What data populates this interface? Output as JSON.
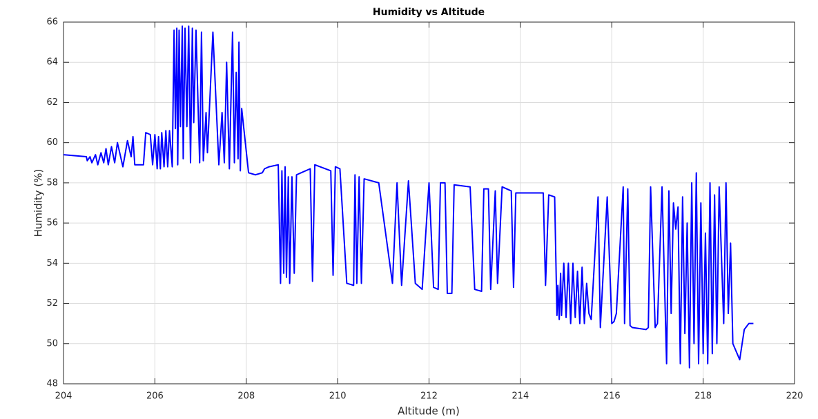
{
  "chart_data": {
    "type": "line",
    "title": "Humidity vs Altitude",
    "xlabel": "Altitude (m)",
    "ylabel": "Humidity (%)",
    "xlim": [
      204,
      220
    ],
    "xticks": [
      204,
      206,
      208,
      210,
      212,
      214,
      216,
      218,
      220
    ],
    "ylim": [
      48,
      66
    ],
    "yticks": [
      48,
      50,
      52,
      54,
      56,
      58,
      60,
      62,
      64,
      66
    ],
    "grid": true,
    "series": [
      {
        "color": "#0000ff",
        "x": [
          204,
          204.5,
          204.52,
          204.58,
          204.62,
          204.7,
          204.75,
          204.82,
          204.88,
          204.93,
          204.98,
          205.05,
          205.12,
          205.18,
          205.3,
          205.4,
          205.48,
          205.52,
          205.56,
          205.75,
          205.8,
          205.9,
          205.95,
          206.0,
          206.05,
          206.08,
          206.12,
          206.15,
          206.2,
          206.24,
          206.28,
          206.32,
          206.38,
          206.42,
          206.45,
          206.48,
          206.5,
          206.53,
          206.56,
          206.6,
          206.62,
          206.66,
          206.7,
          206.74,
          206.78,
          206.82,
          206.85,
          206.9,
          206.98,
          207.02,
          207.06,
          207.12,
          207.15,
          207.18,
          207.27,
          207.4,
          207.47,
          207.52,
          207.57,
          207.63,
          207.7,
          207.74,
          207.78,
          207.82,
          207.84,
          207.87,
          207.9,
          208.05,
          208.2,
          208.35,
          208.4,
          208.5,
          208.7,
          208.75,
          208.78,
          208.82,
          208.85,
          208.88,
          208.92,
          208.95,
          209.0,
          209.05,
          209.1,
          209.2,
          209.4,
          209.45,
          209.5,
          209.85,
          209.9,
          209.95,
          210.05,
          210.2,
          210.35,
          210.38,
          210.42,
          210.47,
          210.52,
          210.58,
          210.9,
          211.2,
          211.3,
          211.4,
          211.55,
          211.7,
          211.85,
          212.0,
          212.1,
          212.2,
          212.25,
          212.35,
          212.4,
          212.5,
          212.55,
          212.9,
          213.0,
          213.15,
          213.2,
          213.3,
          213.35,
          213.45,
          213.5,
          213.6,
          213.8,
          213.85,
          213.9,
          214.2,
          214.5,
          214.55,
          214.62,
          214.75,
          214.8,
          214.82,
          214.85,
          214.88,
          214.9,
          214.95,
          215.0,
          215.05,
          215.1,
          215.15,
          215.2,
          215.25,
          215.3,
          215.35,
          215.4,
          215.45,
          215.5,
          215.55,
          215.7,
          215.75,
          215.9,
          216.0,
          216.05,
          216.1,
          216.25,
          216.28,
          216.35,
          216.4,
          216.45,
          216.75,
          216.8,
          216.85,
          216.95,
          217.0,
          217.1,
          217.2,
          217.25,
          217.3,
          217.35,
          217.4,
          217.45,
          217.5,
          217.55,
          217.6,
          217.65,
          217.7,
          217.75,
          217.8,
          217.85,
          217.9,
          217.95,
          218.0,
          218.05,
          218.1,
          218.15,
          218.2,
          218.25,
          218.3,
          218.35,
          218.45,
          218.5,
          218.55,
          218.6,
          218.65,
          218.8,
          218.9,
          219.0,
          219.1
        ],
        "values": [
          59.4,
          59.3,
          59.1,
          59.3,
          59.0,
          59.4,
          58.9,
          59.5,
          59.0,
          59.7,
          58.9,
          59.8,
          59.0,
          60.0,
          58.8,
          60.1,
          59.3,
          60.3,
          58.9,
          58.9,
          60.5,
          60.4,
          58.9,
          60.4,
          58.7,
          60.3,
          58.7,
          60.5,
          58.8,
          60.6,
          58.8,
          60.6,
          58.8,
          65.6,
          60.7,
          65.7,
          58.9,
          65.6,
          60.8,
          65.8,
          59.2,
          65.7,
          60.8,
          65.8,
          59.0,
          65.7,
          61.0,
          65.6,
          59.0,
          65.5,
          59.1,
          61.5,
          59.5,
          61.0,
          65.5,
          58.9,
          61.5,
          59.0,
          64.0,
          58.7,
          65.5,
          59.0,
          63.5,
          59.2,
          65.0,
          58.6,
          61.7,
          58.5,
          58.4,
          58.5,
          58.7,
          58.8,
          58.9,
          53.0,
          58.6,
          53.5,
          58.8,
          53.3,
          58.3,
          53.0,
          58.3,
          53.5,
          58.4,
          58.5,
          58.7,
          53.1,
          58.9,
          58.6,
          53.4,
          58.8,
          58.7,
          53.0,
          52.9,
          58.4,
          53.0,
          58.3,
          53.0,
          58.2,
          58.0,
          53.0,
          58.0,
          52.9,
          58.1,
          53.0,
          52.7,
          58.0,
          52.8,
          52.7,
          58.0,
          58.0,
          52.5,
          52.5,
          57.9,
          57.8,
          52.7,
          52.6,
          57.7,
          57.7,
          52.7,
          57.6,
          53.0,
          57.8,
          57.6,
          52.8,
          57.5,
          57.5,
          57.5,
          52.9,
          57.4,
          57.3,
          51.4,
          52.9,
          51.2,
          53.5,
          51.4,
          54.0,
          51.3,
          54.0,
          51.0,
          54.0,
          51.3,
          53.6,
          51.0,
          53.8,
          51.0,
          53.0,
          51.5,
          51.2,
          57.3,
          50.8,
          57.3,
          51.0,
          51.1,
          51.5,
          57.8,
          51.0,
          57.7,
          50.9,
          50.8,
          50.7,
          50.8,
          57.8,
          50.8,
          51.0,
          57.8,
          49.0,
          57.6,
          51.5,
          57.0,
          55.7,
          56.8,
          49.0,
          57.3,
          50.5,
          56.0,
          48.8,
          58.0,
          50.0,
          58.5,
          49.0,
          57.0,
          49.5,
          55.5,
          49.0,
          58.0,
          49.5,
          57.4,
          50.0,
          57.8,
          51.0,
          58.0,
          51.5,
          55.0,
          50.0,
          49.2,
          50.7,
          51.0,
          51.0
        ]
      }
    ]
  }
}
